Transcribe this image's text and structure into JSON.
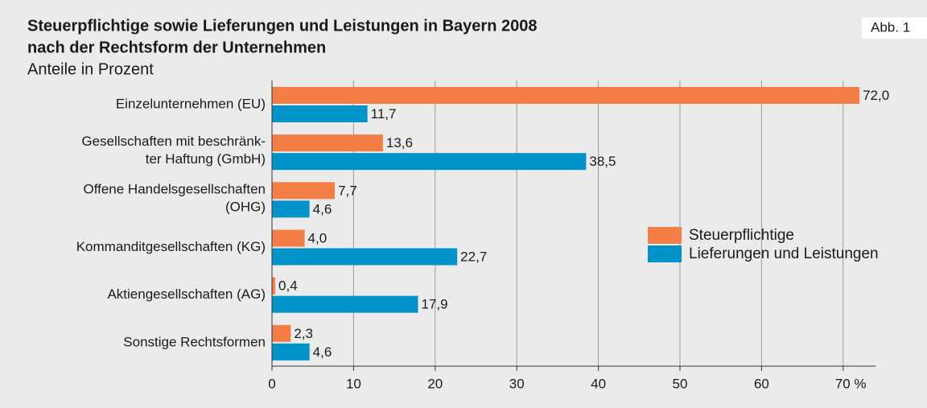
{
  "chart_data": {
    "type": "hbar",
    "title": [
      "Steuerpflichtige sowie Lieferungen und Leistungen in Bayern 2008",
      "nach der Rechtsform der Unternehmen"
    ],
    "subtitle": "Anteile in Prozent",
    "annotation": "Abb. 1",
    "categories": [
      "Einzelunternehmen (EU)",
      "Gesellschaften mit beschränk-\nter Haftung (GmbH)",
      "Offene Handelsgesellschaften\n(OHG)",
      "Kommanditgesellschaften (KG)",
      "Aktiengesellschaften (AG)",
      "Sonstige Rechtsformen"
    ],
    "series": [
      {
        "name": "Steuerpflichtige",
        "color": "#f47f46",
        "values": [
          72.0,
          13.6,
          7.7,
          4.0,
          0.4,
          2.3
        ],
        "value_labels": [
          "72,0",
          "13,6",
          "7,7",
          "4,0",
          "0,4",
          "2,3"
        ]
      },
      {
        "name": "Lieferungen und Leistungen",
        "color": "#0093c9",
        "values": [
          11.7,
          38.5,
          4.6,
          22.7,
          17.9,
          4.6
        ],
        "value_labels": [
          "11,7",
          "38,5",
          "4,6",
          "22,7",
          "17,9",
          "4,6"
        ]
      }
    ],
    "xlim": [
      0,
      74
    ],
    "xticks": [
      0,
      10,
      20,
      30,
      40,
      50,
      60,
      {
        "value": 70,
        "label": "70 %"
      }
    ],
    "grid": true,
    "legend": "right"
  }
}
